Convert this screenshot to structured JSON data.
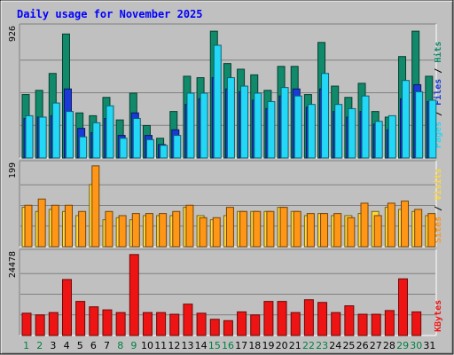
{
  "chart_data": [
    {
      "type": "bar",
      "panel": "Hits / Files / Pages",
      "title": "Daily usage for November 2025",
      "ylabel_parts": [
        "Pages",
        "Files",
        "Hits"
      ],
      "y_max_label": "926",
      "ylim": [
        0,
        926
      ],
      "categories": [
        "1",
        "2",
        "3",
        "4",
        "5",
        "6",
        "7",
        "8",
        "9",
        "10",
        "11",
        "12",
        "13",
        "14",
        "15",
        "16",
        "17",
        "18",
        "19",
        "20",
        "21",
        "22",
        "23",
        "24",
        "25",
        "26",
        "27",
        "28",
        "29",
        "30",
        "31"
      ],
      "weekend_days": [
        "1",
        "2",
        "8",
        "9",
        "15",
        "16",
        "22",
        "23",
        "29",
        "30"
      ],
      "series": [
        {
          "name": "Hits",
          "color": "#108a6a",
          "values": [
            450,
            480,
            600,
            880,
            320,
            300,
            430,
            270,
            460,
            230,
            140,
            330,
            580,
            570,
            900,
            670,
            630,
            590,
            480,
            650,
            650,
            450,
            820,
            510,
            430,
            530,
            330,
            290,
            720,
            900,
            580
          ]
        },
        {
          "name": "Files",
          "color": "#1a3ad8",
          "values": [
            280,
            290,
            300,
            490,
            210,
            180,
            280,
            160,
            320,
            160,
            95,
            200,
            380,
            420,
            570,
            490,
            470,
            410,
            350,
            440,
            490,
            360,
            490,
            330,
            290,
            330,
            240,
            200,
            420,
            520,
            400
          ]
        },
        {
          "name": "Pages",
          "color": "#22d8f6",
          "values": [
            300,
            290,
            390,
            330,
            150,
            250,
            370,
            140,
            280,
            130,
            90,
            160,
            460,
            460,
            800,
            570,
            510,
            460,
            400,
            500,
            440,
            380,
            600,
            380,
            350,
            440,
            260,
            300,
            550,
            470,
            410
          ]
        }
      ]
    },
    {
      "type": "bar",
      "panel": "Visits / Sites",
      "ylabel_parts": [
        "Sites",
        "Visits"
      ],
      "y_max_label": "199",
      "ylim": [
        0,
        199
      ],
      "categories": [
        "1",
        "2",
        "3",
        "4",
        "5",
        "6",
        "7",
        "8",
        "9",
        "10",
        "11",
        "12",
        "13",
        "14",
        "15",
        "16",
        "17",
        "18",
        "19",
        "20",
        "21",
        "22",
        "23",
        "24",
        "25",
        "26",
        "27",
        "28",
        "29",
        "30",
        "31"
      ],
      "series": [
        {
          "name": "Visits",
          "color": "#ffd83a",
          "values": [
            95,
            85,
            90,
            85,
            75,
            150,
            65,
            70,
            65,
            75,
            75,
            75,
            95,
            75,
            65,
            75,
            85,
            85,
            85,
            95,
            85,
            75,
            80,
            75,
            75,
            80,
            85,
            95,
            90,
            85,
            75
          ]
        },
        {
          "name": "Sites",
          "color": "#ff9616",
          "values": [
            100,
            115,
            100,
            100,
            85,
            195,
            85,
            75,
            80,
            80,
            80,
            85,
            100,
            70,
            70,
            95,
            85,
            85,
            85,
            95,
            85,
            80,
            80,
            80,
            70,
            105,
            75,
            105,
            110,
            90,
            80
          ]
        }
      ]
    },
    {
      "type": "bar",
      "panel": "KBytes",
      "ylabel_parts": [
        "KBytes"
      ],
      "y_max_label": "24478",
      "ylim": [
        0,
        24478
      ],
      "categories": [
        "1",
        "2",
        "3",
        "4",
        "5",
        "6",
        "7",
        "8",
        "9",
        "10",
        "11",
        "12",
        "13",
        "14",
        "15",
        "16",
        "17",
        "18",
        "19",
        "20",
        "21",
        "22",
        "23",
        "24",
        "25",
        "26",
        "27",
        "28",
        "29",
        "30",
        "31"
      ],
      "series": [
        {
          "name": "KBytes",
          "color": "#ef1414",
          "values": [
            6600,
            6100,
            6800,
            16600,
            10100,
            8500,
            7600,
            6800,
            24000,
            6800,
            6800,
            6300,
            9300,
            6600,
            4800,
            4400,
            7000,
            6100,
            10100,
            10100,
            6800,
            10600,
            9800,
            6800,
            8800,
            6300,
            6300,
            7400,
            16800,
            7000,
            0
          ]
        }
      ]
    }
  ],
  "colors": {
    "background": "#c0c0c0",
    "title": "#0000ff",
    "weekend_label": "#008040",
    "weekday_label": "#000000"
  }
}
